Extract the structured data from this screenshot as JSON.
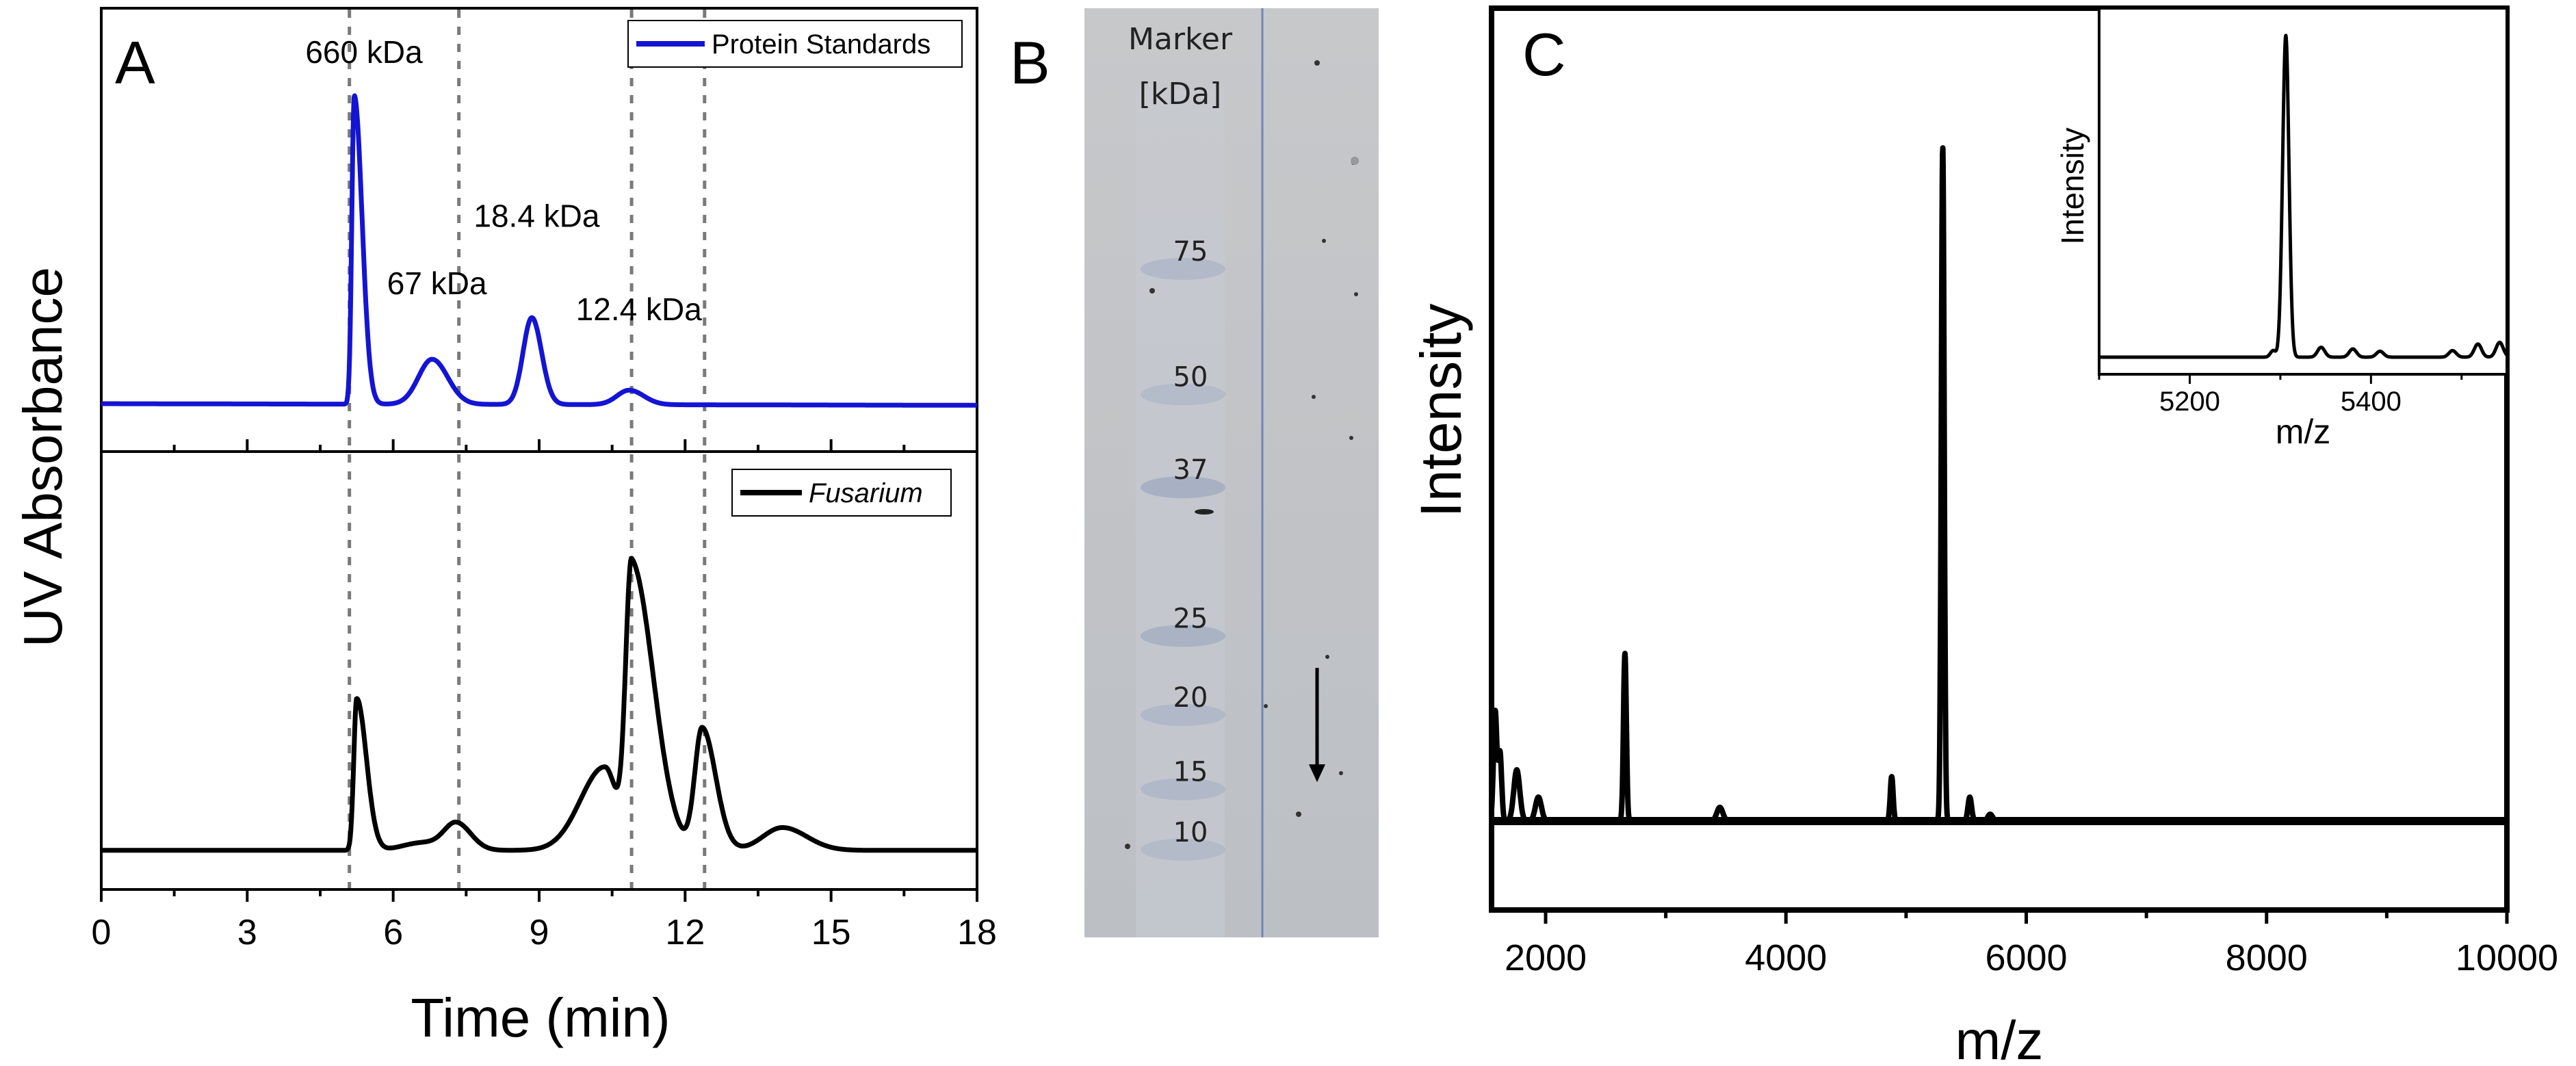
{
  "panel_labels": {
    "a": "A",
    "b": "B",
    "c": "C"
  },
  "colors": {
    "standards": "#1414d4",
    "sample": "#000000",
    "guide": "#7a7a7a",
    "gel_bg": "#c3c4c6",
    "gel_line": "#6f86b8"
  },
  "chart_data": [
    {
      "id": "A",
      "type": "line",
      "xlabel": "Time (min)",
      "ylabel": "UV Absorbance",
      "xlim": [
        0,
        18
      ],
      "xticks": [
        0,
        3,
        6,
        9,
        12,
        15,
        18
      ],
      "xtick_labels": [
        "0",
        "3",
        "6",
        "9",
        "12",
        "15",
        "18"
      ],
      "guide_lines_x": [
        5.1,
        7.35,
        10.9,
        12.4
      ],
      "subplots": [
        {
          "id": "standards",
          "legend": "Protein Standards",
          "legend_italic": false,
          "color": "#1414d4",
          "ylim": [
            0,
            1.0
          ],
          "baseline": 0.0,
          "decay": 0.005,
          "peaks": [
            {
              "x": 5.2,
              "height": 0.96,
              "rise": 0.05,
              "fall": 0.16
            },
            {
              "x": 6.8,
              "height": 0.14,
              "rise": 0.28,
              "fall": 0.32
            },
            {
              "x": 8.85,
              "height": 0.27,
              "rise": 0.18,
              "fall": 0.2
            },
            {
              "x": 10.85,
              "height": 0.045,
              "rise": 0.25,
              "fall": 0.3
            }
          ],
          "annotations": [
            {
              "text": "660 kDa",
              "x": 5.4,
              "y": 1.06
            },
            {
              "text": "67 kDa",
              "x": 6.9,
              "y": 0.34
            },
            {
              "text": "18.4 kDa",
              "x": 8.95,
              "y": 0.55
            },
            {
              "text": "12.4 kDa",
              "x": 11.05,
              "y": 0.26
            }
          ]
        },
        {
          "id": "sample",
          "legend": "Fusarium",
          "legend_italic": true,
          "color": "#000000",
          "ylim": [
            0,
            1.0
          ],
          "baseline": 0.04,
          "decay": 0.0,
          "peaks": [
            {
              "x": 5.25,
              "height": 0.4,
              "rise": 0.06,
              "fall": 0.2
            },
            {
              "x": 6.6,
              "height": 0.02,
              "rise": 0.4,
              "fall": 0.4
            },
            {
              "x": 7.3,
              "height": 0.07,
              "rise": 0.25,
              "fall": 0.3
            },
            {
              "x": 10.35,
              "height": 0.22,
              "rise": 0.5,
              "fall": 0.25
            },
            {
              "x": 10.9,
              "height": 0.75,
              "rise": 0.12,
              "fall": 0.45
            },
            {
              "x": 12.35,
              "height": 0.32,
              "rise": 0.15,
              "fall": 0.28
            },
            {
              "x": 14.0,
              "height": 0.06,
              "rise": 0.4,
              "fall": 0.5
            }
          ]
        }
      ]
    },
    {
      "id": "B",
      "type": "gel",
      "header": [
        "Marker",
        "[kDa]"
      ],
      "bands": [
        {
          "label": "75",
          "y": 0.26,
          "intensity": 0.35
        },
        {
          "label": "50",
          "y": 0.395,
          "intensity": 0.3
        },
        {
          "label": "37",
          "y": 0.495,
          "intensity": 0.55
        },
        {
          "label": "25",
          "y": 0.655,
          "intensity": 0.5
        },
        {
          "label": "20",
          "y": 0.74,
          "intensity": 0.35
        },
        {
          "label": "15",
          "y": 0.82,
          "intensity": 0.35
        },
        {
          "label": "10",
          "y": 0.885,
          "intensity": 0.3
        }
      ],
      "arrow": {
        "from": 0.71,
        "to": 0.83
      }
    },
    {
      "id": "C",
      "type": "line",
      "xlabel": "m/z",
      "ylabel": "Intensity",
      "xlim": [
        1550,
        10000
      ],
      "ylim": [
        0,
        1.0
      ],
      "xticks": [
        2000,
        4000,
        6000,
        8000,
        10000
      ],
      "xtick_labels": [
        "2000",
        "4000",
        "6000",
        "8000",
        "10000"
      ],
      "baseline": 0.0,
      "peaks": [
        {
          "x": 1580,
          "mz_width": 14,
          "height": 0.16
        },
        {
          "x": 1620,
          "mz_width": 14,
          "height": 0.1
        },
        {
          "x": 1760,
          "mz_width": 25,
          "height": 0.075
        },
        {
          "x": 1940,
          "mz_width": 25,
          "height": 0.035
        },
        {
          "x": 2660,
          "mz_width": 12,
          "height": 0.245
        },
        {
          "x": 3450,
          "mz_width": 25,
          "height": 0.02
        },
        {
          "x": 4880,
          "mz_width": 12,
          "height": 0.065
        },
        {
          "x": 5305,
          "mz_width": 12,
          "height": 0.985
        },
        {
          "x": 5530,
          "mz_width": 15,
          "height": 0.035
        },
        {
          "x": 5700,
          "mz_width": 20,
          "height": 0.01
        }
      ],
      "inset": {
        "type": "line",
        "xlabel": "m/z",
        "ylabel": "Intensity",
        "xlim": [
          5100,
          5550
        ],
        "ylim": [
          0,
          1.0
        ],
        "xticks": [
          5200,
          5400
        ],
        "xtick_labels": [
          "5200",
          "5400"
        ],
        "peaks": [
          {
            "x": 5306,
            "mz_width": 3.5,
            "height": 0.98
          },
          {
            "x": 5292,
            "mz_width": 3,
            "height": 0.02
          },
          {
            "x": 5345,
            "mz_width": 4,
            "height": 0.03
          },
          {
            "x": 5380,
            "mz_width": 4,
            "height": 0.025
          },
          {
            "x": 5410,
            "mz_width": 4,
            "height": 0.018
          },
          {
            "x": 5490,
            "mz_width": 4,
            "height": 0.02
          },
          {
            "x": 5518,
            "mz_width": 4,
            "height": 0.04
          },
          {
            "x": 5542,
            "mz_width": 4,
            "height": 0.045
          }
        ]
      }
    }
  ]
}
